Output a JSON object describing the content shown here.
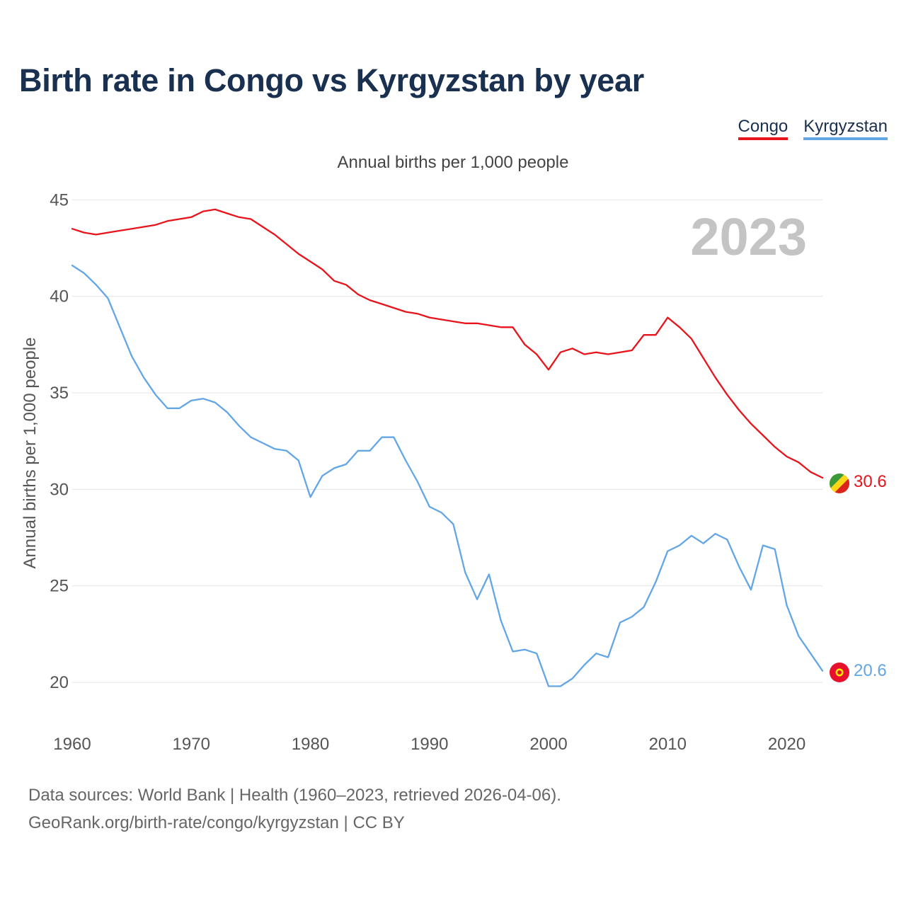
{
  "title": "Birth rate in Congo vs Kyrgyzstan by year",
  "subtitle": "Annual births per 1,000 people",
  "year_label": "2023",
  "legend": [
    {
      "name": "Congo",
      "color": "#e8141b"
    },
    {
      "name": "Kyrgyzstan",
      "color": "#63a6e6"
    }
  ],
  "footer": {
    "line1": "Data sources: World Bank | Health (1960–2023, retrieved 2026-04-06).",
    "line2": "GeoRank.org/birth-rate/congo/kyrgyzstan | CC BY"
  },
  "chart_data": {
    "type": "line",
    "title": "Birth rate in Congo vs Kyrgyzstan by year",
    "xlabel": "",
    "ylabel": "Annual births per 1,000 people",
    "xlim": [
      1960,
      2023
    ],
    "ylim": [
      18.5,
      46
    ],
    "grid": true,
    "x_ticks": [
      1960,
      1970,
      1980,
      1990,
      2000,
      2010,
      2020
    ],
    "y_ticks": [
      20,
      25,
      30,
      35,
      40,
      45
    ],
    "x": [
      1960,
      1961,
      1962,
      1963,
      1964,
      1965,
      1966,
      1967,
      1968,
      1969,
      1970,
      1971,
      1972,
      1973,
      1974,
      1975,
      1976,
      1977,
      1978,
      1979,
      1980,
      1981,
      1982,
      1983,
      1984,
      1985,
      1986,
      1987,
      1988,
      1989,
      1990,
      1991,
      1992,
      1993,
      1994,
      1995,
      1996,
      1997,
      1998,
      1999,
      2000,
      2001,
      2002,
      2003,
      2004,
      2005,
      2006,
      2007,
      2008,
      2009,
      2010,
      2011,
      2012,
      2013,
      2014,
      2015,
      2016,
      2017,
      2018,
      2019,
      2020,
      2021,
      2022,
      2023
    ],
    "series": [
      {
        "name": "Congo",
        "color": "#e8141b",
        "final_label": "30.6",
        "values": [
          43.5,
          43.3,
          43.2,
          43.3,
          43.4,
          43.5,
          43.6,
          43.7,
          43.9,
          44.0,
          44.1,
          44.4,
          44.5,
          44.3,
          44.1,
          44.0,
          43.6,
          43.2,
          42.7,
          42.2,
          41.8,
          41.4,
          40.8,
          40.6,
          40.1,
          39.8,
          39.6,
          39.4,
          39.2,
          39.1,
          38.9,
          38.8,
          38.7,
          38.6,
          38.6,
          38.5,
          38.4,
          38.4,
          37.5,
          37.0,
          36.2,
          37.1,
          37.3,
          37.0,
          37.1,
          37.0,
          37.1,
          37.2,
          38.0,
          38.0,
          38.9,
          38.4,
          37.8,
          36.8,
          35.8,
          34.9,
          34.1,
          33.4,
          32.8,
          32.2,
          31.7,
          31.4,
          30.9,
          30.6
        ]
      },
      {
        "name": "Kyrgyzstan",
        "color": "#63a6e6",
        "final_label": "20.6",
        "values": [
          41.6,
          41.2,
          40.6,
          39.9,
          38.4,
          36.9,
          35.8,
          34.9,
          34.2,
          34.2,
          34.6,
          34.7,
          34.5,
          34.0,
          33.3,
          32.7,
          32.4,
          32.1,
          32.0,
          31.5,
          29.6,
          30.7,
          31.1,
          31.3,
          32.0,
          32.0,
          32.7,
          32.7,
          31.5,
          30.4,
          29.1,
          28.8,
          28.2,
          25.7,
          24.3,
          25.6,
          23.2,
          21.6,
          21.7,
          21.5,
          19.8,
          19.8,
          20.2,
          20.9,
          21.5,
          21.3,
          23.1,
          23.4,
          23.9,
          25.2,
          26.8,
          27.1,
          27.6,
          27.2,
          27.7,
          27.4,
          26.0,
          24.8,
          27.1,
          26.9,
          24.0,
          22.4,
          21.5,
          20.6
        ]
      }
    ]
  }
}
